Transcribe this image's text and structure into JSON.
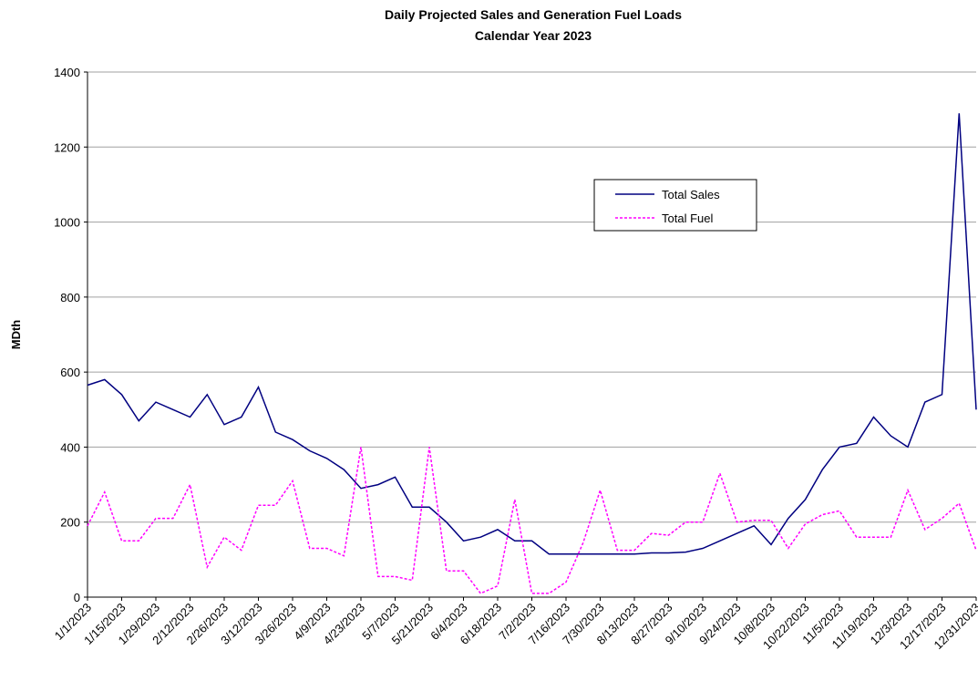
{
  "chart_data": {
    "type": "line",
    "title": "Daily Projected Sales and Generation Fuel Loads",
    "subtitle": "Calendar Year 2023",
    "y_label": "MDth",
    "categories": [
      "1/1/2023",
      null,
      "1/15/2023",
      null,
      "1/29/2023",
      null,
      "2/12/2023",
      null,
      "2/26/2023",
      null,
      "3/12/2023",
      null,
      "3/26/2023",
      null,
      "4/9/2023",
      null,
      "4/23/2023",
      null,
      "5/7/2023",
      null,
      "5/21/2023",
      null,
      "6/4/2023",
      null,
      "6/18/2023",
      null,
      "7/2/2023",
      null,
      "7/16/2023",
      null,
      "7/30/2023",
      null,
      "8/13/2023",
      null,
      "8/27/2023",
      null,
      "9/10/2023",
      null,
      "9/24/2023",
      null,
      "10/8/2023",
      null,
      "10/22/2023",
      null,
      "11/5/2023",
      null,
      "11/19/2023",
      null,
      "12/3/2023",
      null,
      "12/17/2023",
      null,
      "12/31/2023"
    ],
    "series": [
      {
        "name": "Total Sales",
        "color": "#000080",
        "dashed": false,
        "values": [
          565,
          580,
          540,
          470,
          520,
          500,
          480,
          540,
          460,
          480,
          560,
          440,
          420,
          390,
          370,
          340,
          290,
          300,
          320,
          240,
          240,
          200,
          150,
          160,
          180,
          150,
          150,
          115,
          115,
          115,
          115,
          115,
          115,
          118,
          118,
          120,
          130,
          150,
          170,
          190,
          140,
          210,
          260,
          340,
          400,
          410,
          480,
          430,
          400,
          520,
          540,
          1290,
          500
        ]
      },
      {
        "name": "Total Fuel",
        "color": "#ff00ff",
        "dashed": true,
        "values": [
          190,
          280,
          150,
          150,
          210,
          210,
          300,
          80,
          160,
          125,
          245,
          245,
          310,
          130,
          130,
          110,
          400,
          55,
          55,
          45,
          400,
          70,
          70,
          10,
          30,
          260,
          10,
          10,
          40,
          145,
          285,
          125,
          125,
          170,
          165,
          200,
          200,
          330,
          200,
          205,
          205,
          130,
          195,
          220,
          230,
          160,
          160,
          160,
          285,
          180,
          210,
          250,
          125
        ]
      }
    ],
    "ylim": [
      0,
      1400
    ],
    "yticks": [
      0,
      200,
      400,
      600,
      800,
      1000,
      1200,
      1400
    ],
    "grid": true
  }
}
